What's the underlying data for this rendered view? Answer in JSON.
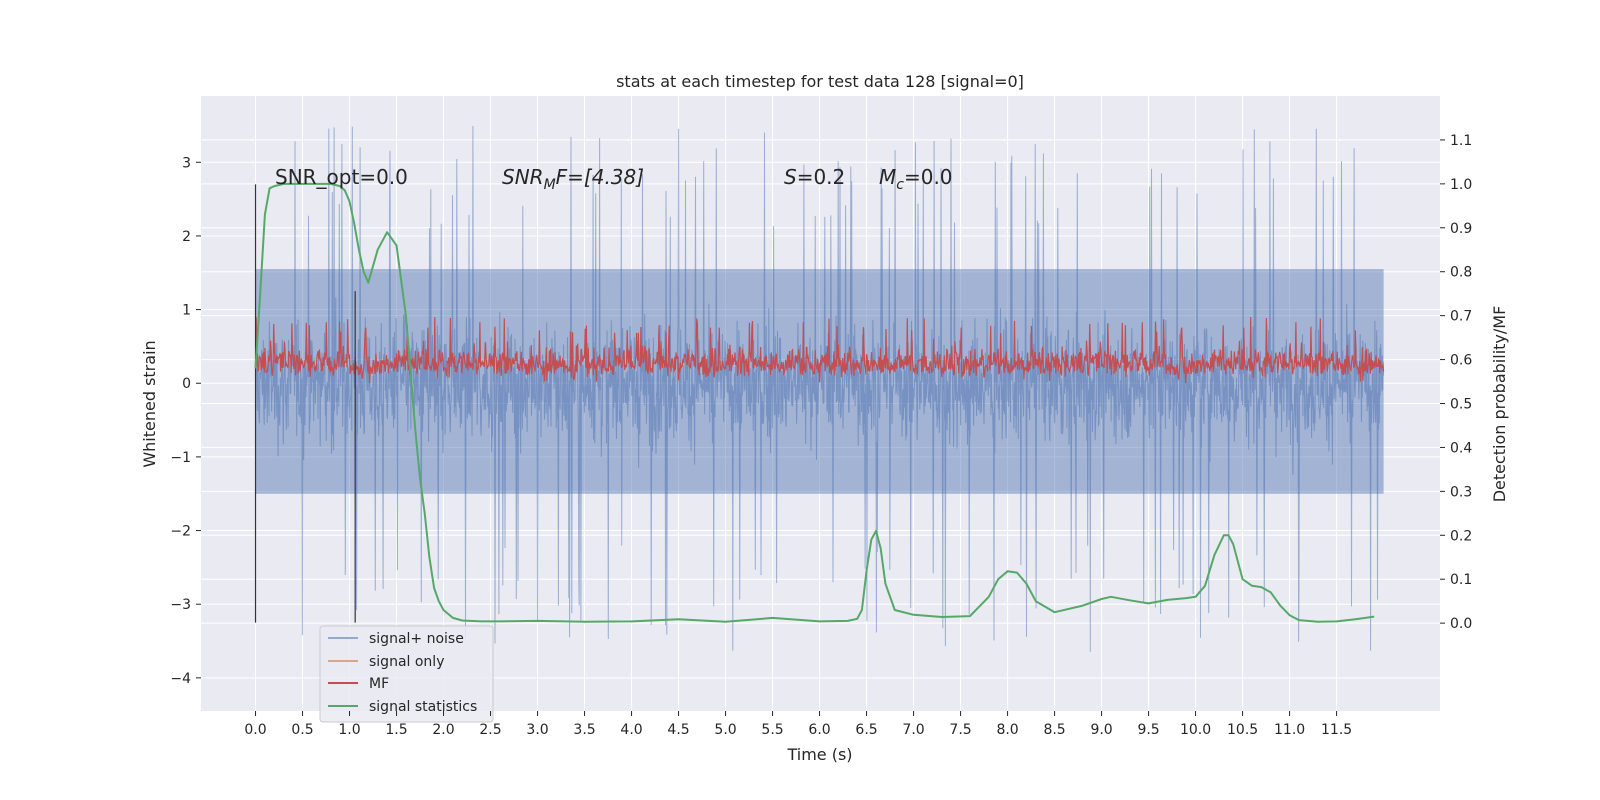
{
  "chart_data": {
    "type": "line",
    "title": "stats at each timestep for test data 128 [signal=0]",
    "xlabel": "Time (s)",
    "ylabel": "Whitened strain",
    "y2label": "Detection probability/MF",
    "xlim": [
      -0.58,
      12.6
    ],
    "ylim": [
      -4.45,
      3.9
    ],
    "y2lim": [
      -0.2,
      1.2
    ],
    "grid": true,
    "x_ticks": [
      "0.0",
      "0.5",
      "1.0",
      "1.5",
      "2.0",
      "2.5",
      "3.0",
      "3.5",
      "4.0",
      "4.5",
      "5.0",
      "5.5",
      "6.0",
      "6.5",
      "7.0",
      "7.5",
      "8.0",
      "8.5",
      "9.0",
      "9.5",
      "10.0",
      "10.5",
      "11.0",
      "11.5"
    ],
    "y_ticks": [
      "3",
      "2",
      "1",
      "0",
      "−1",
      "−2",
      "−3",
      "−4"
    ],
    "y2_ticks": [
      "1.1",
      "1.0",
      "0.9",
      "0.8",
      "0.7",
      "0.6",
      "0.5",
      "0.4",
      "0.3",
      "0.2",
      "0.1",
      "0.0"
    ],
    "annotations": {
      "snr_opt": "SNR_opt=0.0",
      "snr_mf_base": "SNR",
      "snr_mf_sub": "M",
      "snr_mf_rest": "F=[4.38]",
      "s_base": "S",
      "s_rest": "=0.2",
      "mc_base": "M",
      "mc_sub": "c",
      "mc_rest": "=0.0"
    },
    "legend": {
      "placement": "lower-left",
      "entries": [
        "signal+ noise",
        "signal only",
        "MF",
        "signal statistics"
      ]
    },
    "colors": {
      "background": "#eaeaf2",
      "grid": "#ffffff",
      "signal_noise": "#4c72b0",
      "signal_only": "#dd8452",
      "mf": "#c44e52",
      "signal_statistics": "#55a868",
      "vline": "#333333"
    },
    "series": [
      {
        "name": "signal+ noise",
        "axis": "left",
        "x_range": [
          0.0,
          12.0
        ],
        "envelope_core": [
          -1.5,
          1.55
        ],
        "spike_extremes": [
          -3.65,
          3.5
        ]
      },
      {
        "name": "signal only",
        "axis": "left",
        "values": []
      },
      {
        "name": "MF",
        "axis": "left",
        "x_range": [
          0.0,
          12.0
        ],
        "envelope": [
          0.0,
          0.9
        ]
      },
      {
        "name": "signal statistics",
        "axis": "right",
        "x": [
          0.0,
          0.05,
          0.1,
          0.15,
          0.2,
          0.3,
          0.4,
          0.5,
          0.6,
          0.7,
          0.8,
          0.9,
          0.95,
          1.0,
          1.05,
          1.1,
          1.15,
          1.2,
          1.3,
          1.4,
          1.5,
          1.6,
          1.7,
          1.75,
          1.8,
          1.85,
          1.9,
          1.95,
          2.0,
          2.1,
          2.2,
          2.4,
          2.6,
          3.0,
          3.5,
          4.0,
          4.5,
          5.0,
          5.5,
          6.0,
          6.3,
          6.4,
          6.45,
          6.5,
          6.55,
          6.6,
          6.65,
          6.7,
          6.8,
          7.0,
          7.3,
          7.6,
          7.8,
          7.9,
          8.0,
          8.1,
          8.2,
          8.3,
          8.5,
          8.8,
          9.0,
          9.1,
          9.3,
          9.5,
          9.7,
          9.9,
          10.0,
          10.1,
          10.2,
          10.3,
          10.35,
          10.4,
          10.5,
          10.6,
          10.7,
          10.8,
          10.9,
          11.0,
          11.1,
          11.3,
          11.5,
          11.7,
          11.9
        ],
        "values": [
          0.58,
          0.75,
          0.93,
          0.99,
          0.995,
          1.0,
          1.0,
          1.0,
          1.0,
          1.0,
          1.0,
          0.995,
          0.985,
          0.96,
          0.91,
          0.85,
          0.8,
          0.775,
          0.85,
          0.89,
          0.86,
          0.7,
          0.44,
          0.33,
          0.25,
          0.15,
          0.08,
          0.05,
          0.03,
          0.012,
          0.006,
          0.004,
          0.004,
          0.005,
          0.003,
          0.004,
          0.009,
          0.003,
          0.012,
          0.004,
          0.005,
          0.01,
          0.03,
          0.12,
          0.19,
          0.21,
          0.17,
          0.09,
          0.03,
          0.019,
          0.014,
          0.016,
          0.06,
          0.1,
          0.118,
          0.115,
          0.09,
          0.05,
          0.025,
          0.04,
          0.055,
          0.06,
          0.052,
          0.045,
          0.053,
          0.057,
          0.06,
          0.085,
          0.155,
          0.2,
          0.2,
          0.18,
          0.1,
          0.085,
          0.082,
          0.07,
          0.04,
          0.018,
          0.007,
          0.003,
          0.004,
          0.009,
          0.015
        ]
      }
    ],
    "vertical_markers": [
      {
        "x": 0.0,
        "y_from": -3.25,
        "y_to": 2.7
      },
      {
        "x": 1.06,
        "y_from": -3.25,
        "y_to": 1.25
      }
    ]
  }
}
